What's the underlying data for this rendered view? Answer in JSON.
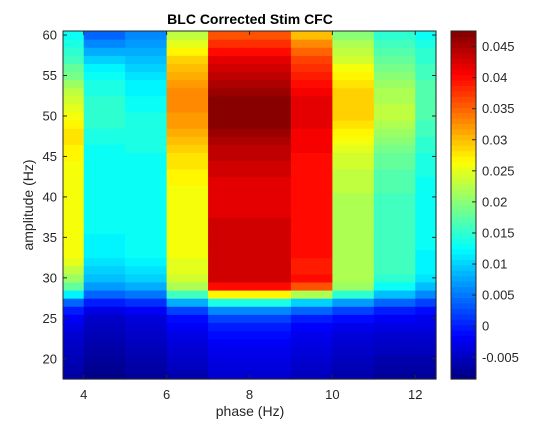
{
  "chart_data": {
    "type": "heatmap",
    "title": "BLC Corrected Stim CFC",
    "xlabel": "phase (Hz)",
    "ylabel": "amplitude (Hz)",
    "colormap": "jet",
    "x_centers": [
      3.5,
      4.5,
      5.5,
      6.5,
      7.5,
      8.5,
      9.5,
      10.5,
      11.5,
      12.5
    ],
    "x_ticks": [
      4,
      6,
      8,
      10,
      12
    ],
    "xlim": [
      3.5,
      12.5
    ],
    "y_ticks": [
      20,
      25,
      30,
      35,
      40,
      45,
      50,
      55,
      60
    ],
    "ylim": [
      17.5,
      60.5
    ],
    "colorbar": {
      "ticks": [
        -0.005,
        0,
        0.005,
        0.01,
        0.015,
        0.02,
        0.025,
        0.03,
        0.035,
        0.04,
        0.045
      ],
      "tick_labels": [
        "-0.005",
        "0",
        "0.005",
        "0.01",
        "0.015",
        "0.02",
        "0.025",
        "0.03",
        "0.035",
        "0.04",
        "0.045"
      ],
      "clim": [
        -0.0085,
        0.0475
      ]
    },
    "z": [
      {
        "y": 18,
        "values": [
          -0.0065,
          -0.008,
          -0.007,
          -0.006,
          -0.004,
          -0.004,
          -0.005,
          -0.006,
          -0.007,
          -0.007
        ]
      },
      {
        "y": 19,
        "values": [
          -0.006,
          -0.0075,
          -0.0065,
          -0.005,
          -0.0035,
          -0.0035,
          -0.0045,
          -0.0055,
          -0.0065,
          -0.0065
        ]
      },
      {
        "y": 20,
        "values": [
          -0.0055,
          -0.007,
          -0.006,
          -0.0045,
          -0.003,
          -0.003,
          -0.004,
          -0.005,
          -0.006,
          -0.006
        ]
      },
      {
        "y": 21,
        "values": [
          -0.005,
          -0.0065,
          -0.0055,
          -0.004,
          -0.0025,
          -0.0025,
          -0.0035,
          -0.0045,
          -0.005,
          -0.005
        ]
      },
      {
        "y": 22,
        "values": [
          -0.0045,
          -0.006,
          -0.005,
          -0.0035,
          -0.002,
          -0.002,
          -0.003,
          -0.004,
          -0.0045,
          -0.0045
        ]
      },
      {
        "y": 23,
        "values": [
          -0.004,
          -0.0055,
          -0.0045,
          -0.003,
          -0.001,
          -0.001,
          -0.0025,
          -0.0035,
          -0.004,
          -0.004
        ]
      },
      {
        "y": 24,
        "values": [
          -0.003,
          -0.005,
          -0.004,
          -0.002,
          0.0,
          0.0,
          -0.0015,
          -0.0025,
          -0.003,
          -0.003
        ]
      },
      {
        "y": 25,
        "values": [
          -0.002,
          -0.0045,
          -0.0035,
          -0.001,
          0.002,
          0.002,
          0.0,
          -0.001,
          -0.002,
          -0.0025
        ]
      },
      {
        "y": 26,
        "values": [
          0.0,
          -0.003,
          -0.002,
          0.002,
          0.006,
          0.006,
          0.004,
          0.002,
          0.0,
          -0.001
        ]
      },
      {
        "y": 27,
        "values": [
          0.004,
          0.0,
          0.001,
          0.008,
          0.014,
          0.014,
          0.01,
          0.007,
          0.004,
          0.002
        ]
      },
      {
        "y": 28,
        "values": [
          0.012,
          0.004,
          0.005,
          0.016,
          0.027,
          0.027,
          0.022,
          0.015,
          0.009,
          0.006
        ]
      },
      {
        "y": 29,
        "values": [
          0.018,
          0.007,
          0.008,
          0.022,
          0.04,
          0.04,
          0.036,
          0.021,
          0.013,
          0.009
        ]
      },
      {
        "y": 30,
        "values": [
          0.021,
          0.009,
          0.01,
          0.024,
          0.043,
          0.043,
          0.04,
          0.022,
          0.015,
          0.011
        ]
      },
      {
        "y": 31,
        "values": [
          0.023,
          0.01,
          0.011,
          0.025,
          0.043,
          0.043,
          0.039,
          0.022,
          0.016,
          0.012
        ]
      },
      {
        "y": 32,
        "values": [
          0.025,
          0.011,
          0.012,
          0.025,
          0.043,
          0.043,
          0.039,
          0.022,
          0.016,
          0.012
        ]
      },
      {
        "y": 33,
        "values": [
          0.026,
          0.012,
          0.013,
          0.026,
          0.043,
          0.043,
          0.04,
          0.022,
          0.016,
          0.012
        ]
      },
      {
        "y": 34,
        "values": [
          0.026,
          0.012,
          0.013,
          0.026,
          0.043,
          0.043,
          0.04,
          0.022,
          0.016,
          0.013
        ]
      },
      {
        "y": 35,
        "values": [
          0.026,
          0.012,
          0.013,
          0.026,
          0.043,
          0.043,
          0.04,
          0.022,
          0.016,
          0.013
        ]
      },
      {
        "y": 36,
        "values": [
          0.026,
          0.013,
          0.013,
          0.026,
          0.043,
          0.043,
          0.04,
          0.022,
          0.016,
          0.013
        ]
      },
      {
        "y": 37,
        "values": [
          0.026,
          0.013,
          0.013,
          0.026,
          0.043,
          0.043,
          0.04,
          0.022,
          0.016,
          0.013
        ]
      },
      {
        "y": 38,
        "values": [
          0.026,
          0.013,
          0.013,
          0.026,
          0.042,
          0.042,
          0.04,
          0.022,
          0.016,
          0.013
        ]
      },
      {
        "y": 39,
        "values": [
          0.026,
          0.013,
          0.013,
          0.026,
          0.042,
          0.042,
          0.04,
          0.022,
          0.016,
          0.013
        ]
      },
      {
        "y": 40,
        "values": [
          0.026,
          0.013,
          0.013,
          0.026,
          0.042,
          0.042,
          0.04,
          0.022,
          0.016,
          0.013
        ]
      },
      {
        "y": 41,
        "values": [
          0.026,
          0.013,
          0.013,
          0.026,
          0.042,
          0.042,
          0.04,
          0.023,
          0.017,
          0.013
        ]
      },
      {
        "y": 42,
        "values": [
          0.026,
          0.013,
          0.013,
          0.027,
          0.042,
          0.042,
          0.04,
          0.023,
          0.017,
          0.013
        ]
      },
      {
        "y": 43,
        "values": [
          0.026,
          0.013,
          0.013,
          0.027,
          0.043,
          0.043,
          0.04,
          0.023,
          0.017,
          0.014
        ]
      },
      {
        "y": 44,
        "values": [
          0.026,
          0.013,
          0.013,
          0.028,
          0.043,
          0.043,
          0.04,
          0.024,
          0.018,
          0.014
        ]
      },
      {
        "y": 45,
        "values": [
          0.027,
          0.013,
          0.013,
          0.028,
          0.044,
          0.044,
          0.04,
          0.024,
          0.018,
          0.014
        ]
      },
      {
        "y": 46,
        "values": [
          0.027,
          0.013,
          0.014,
          0.029,
          0.044,
          0.044,
          0.041,
          0.025,
          0.019,
          0.015
        ]
      },
      {
        "y": 47,
        "values": [
          0.028,
          0.014,
          0.014,
          0.03,
          0.045,
          0.045,
          0.041,
          0.026,
          0.02,
          0.015
        ]
      },
      {
        "y": 48,
        "values": [
          0.028,
          0.014,
          0.014,
          0.031,
          0.046,
          0.046,
          0.041,
          0.027,
          0.021,
          0.016
        ]
      },
      {
        "y": 49,
        "values": [
          0.027,
          0.015,
          0.014,
          0.032,
          0.047,
          0.047,
          0.042,
          0.028,
          0.022,
          0.016
        ]
      },
      {
        "y": 50,
        "values": [
          0.026,
          0.015,
          0.014,
          0.032,
          0.047,
          0.047,
          0.042,
          0.029,
          0.023,
          0.017
        ]
      },
      {
        "y": 51,
        "values": [
          0.025,
          0.015,
          0.013,
          0.033,
          0.047,
          0.047,
          0.042,
          0.029,
          0.023,
          0.017
        ]
      },
      {
        "y": 52,
        "values": [
          0.024,
          0.015,
          0.013,
          0.033,
          0.047,
          0.047,
          0.042,
          0.029,
          0.022,
          0.017
        ]
      },
      {
        "y": 53,
        "values": [
          0.023,
          0.014,
          0.012,
          0.033,
          0.046,
          0.046,
          0.041,
          0.029,
          0.022,
          0.017
        ]
      },
      {
        "y": 54,
        "values": [
          0.021,
          0.014,
          0.012,
          0.032,
          0.045,
          0.045,
          0.04,
          0.028,
          0.021,
          0.017
        ]
      },
      {
        "y": 55,
        "values": [
          0.019,
          0.013,
          0.011,
          0.031,
          0.044,
          0.044,
          0.039,
          0.027,
          0.02,
          0.016
        ]
      },
      {
        "y": 56,
        "values": [
          0.018,
          0.012,
          0.01,
          0.03,
          0.043,
          0.043,
          0.038,
          0.026,
          0.019,
          0.016
        ]
      },
      {
        "y": 57,
        "values": [
          0.016,
          0.01,
          0.009,
          0.029,
          0.042,
          0.042,
          0.037,
          0.024,
          0.018,
          0.015
        ]
      },
      {
        "y": 58,
        "values": [
          0.015,
          0.008,
          0.008,
          0.027,
          0.04,
          0.04,
          0.035,
          0.023,
          0.017,
          0.015
        ]
      },
      {
        "y": 59,
        "values": [
          0.014,
          0.006,
          0.007,
          0.025,
          0.038,
          0.038,
          0.033,
          0.022,
          0.016,
          0.014
        ]
      },
      {
        "y": 60,
        "values": [
          0.013,
          0.004,
          0.006,
          0.023,
          0.036,
          0.036,
          0.03,
          0.02,
          0.015,
          0.013
        ]
      }
    ]
  }
}
